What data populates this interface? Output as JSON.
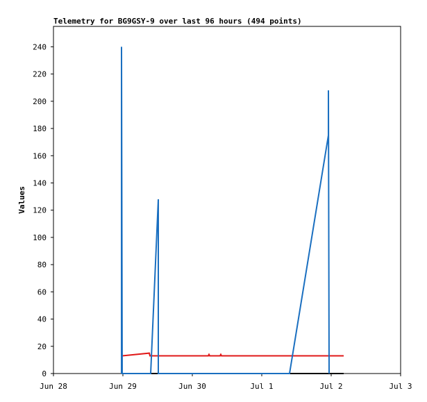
{
  "chart_data": {
    "type": "line",
    "title": "Telemetry for BG9GSY-9 over last 96 hours (494 points)",
    "y_label": "Values",
    "xlim": [
      0,
      5
    ],
    "xticks": [
      {
        "value": 0,
        "label": "Jun 28"
      },
      {
        "value": 1,
        "label": "Jun 29"
      },
      {
        "value": 2,
        "label": "Jun 30"
      },
      {
        "value": 3,
        "label": "Jul 1"
      },
      {
        "value": 4,
        "label": "Jul 2"
      },
      {
        "value": 5,
        "label": "Jul 3"
      }
    ],
    "ylim": [
      0,
      255
    ],
    "yticks": [
      0,
      20,
      40,
      60,
      80,
      100,
      120,
      140,
      160,
      180,
      200,
      220,
      240
    ],
    "series": [
      {
        "color": "#000000",
        "x": [
          0.99,
          4.18
        ],
        "values": [
          0,
          0
        ]
      },
      {
        "color": "#e01818",
        "x": [
          0.99,
          1.38,
          1.39,
          2.23,
          2.24,
          2.25,
          2.4,
          2.41,
          2.42,
          4.18
        ],
        "values": [
          13,
          15,
          13,
          13,
          14,
          13,
          13,
          14,
          13,
          13
        ]
      },
      {
        "color": "#1a6fc0",
        "x": [
          0.98,
          0.98,
          0.99,
          1.4,
          1.51,
          1.51,
          3.4,
          3.96,
          3.96,
          3.97
        ],
        "values": [
          0,
          240,
          0,
          0,
          128,
          0,
          0,
          175,
          208,
          0
        ]
      }
    ]
  }
}
